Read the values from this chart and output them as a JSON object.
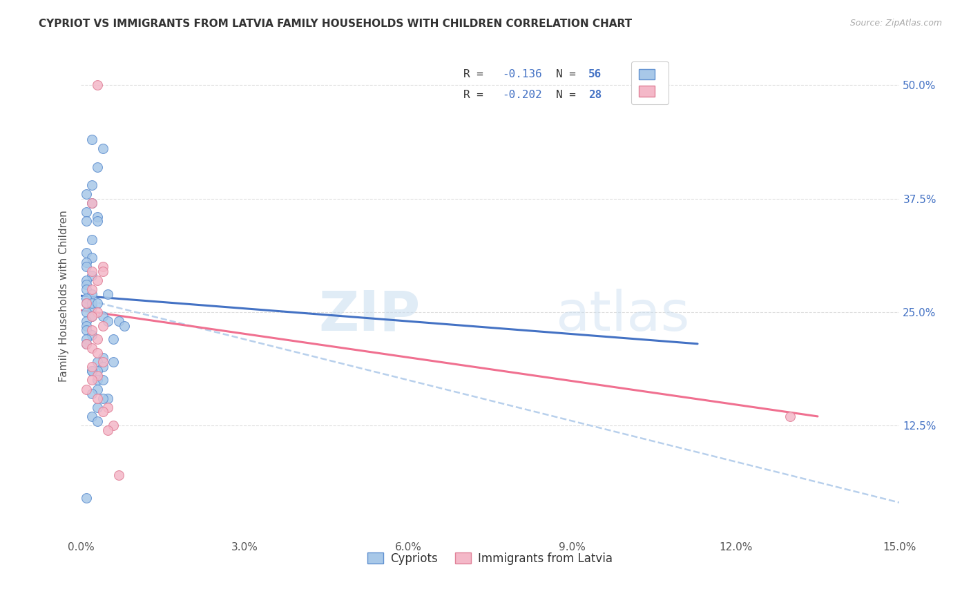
{
  "title": "CYPRIOT VS IMMIGRANTS FROM LATVIA FAMILY HOUSEHOLDS WITH CHILDREN CORRELATION CHART",
  "source": "Source: ZipAtlas.com",
  "ylabel": "Family Households with Children",
  "yticks": [
    0.125,
    0.25,
    0.375,
    0.5
  ],
  "ytick_labels": [
    "12.5%",
    "25.0%",
    "37.5%",
    "50.0%"
  ],
  "xticks": [
    0.0,
    0.03,
    0.06,
    0.09,
    0.12,
    0.15
  ],
  "xtick_labels": [
    "0.0%",
    "3.0%",
    "6.0%",
    "9.0%",
    "12.0%",
    "15.0%"
  ],
  "xlim": [
    0.0,
    0.15
  ],
  "ylim": [
    0.0,
    0.535
  ],
  "legend_r1": "R = ",
  "legend_v1": "-0.136",
  "legend_n1": "   N = ",
  "legend_nv1": "56",
  "legend_r2": "R = ",
  "legend_v2": "-0.202",
  "legend_n2": "   N = ",
  "legend_nv2": "28",
  "legend_label1": "Cypriots",
  "legend_label2": "Immigrants from Latvia",
  "color_blue_fill": "#a8c8e8",
  "color_blue_edge": "#6090d0",
  "color_pink_fill": "#f4b8c8",
  "color_pink_edge": "#e08098",
  "line_blue": "#4472c4",
  "line_pink": "#f07090",
  "line_dashed": "#b8d0ec",
  "text_blue": "#4472c4",
  "text_black": "#333333",
  "background": "#ffffff",
  "cypriot_x": [
    0.002,
    0.004,
    0.003,
    0.002,
    0.001,
    0.002,
    0.001,
    0.003,
    0.001,
    0.002,
    0.001,
    0.002,
    0.001,
    0.001,
    0.002,
    0.001,
    0.001,
    0.001,
    0.002,
    0.001,
    0.001,
    0.002,
    0.001,
    0.002,
    0.001,
    0.001,
    0.001,
    0.002,
    0.001,
    0.001,
    0.003,
    0.002,
    0.003,
    0.005,
    0.004,
    0.005,
    0.007,
    0.008,
    0.006,
    0.004,
    0.003,
    0.004,
    0.006,
    0.003,
    0.002,
    0.003,
    0.004,
    0.003,
    0.002,
    0.005,
    0.004,
    0.003,
    0.002,
    0.003,
    0.001,
    0.002
  ],
  "cypriot_y": [
    0.44,
    0.43,
    0.41,
    0.39,
    0.38,
    0.37,
    0.36,
    0.355,
    0.35,
    0.33,
    0.315,
    0.31,
    0.305,
    0.3,
    0.29,
    0.285,
    0.28,
    0.275,
    0.27,
    0.265,
    0.26,
    0.255,
    0.25,
    0.245,
    0.24,
    0.235,
    0.23,
    0.225,
    0.22,
    0.215,
    0.35,
    0.26,
    0.26,
    0.27,
    0.245,
    0.24,
    0.24,
    0.235,
    0.22,
    0.2,
    0.195,
    0.19,
    0.195,
    0.185,
    0.185,
    0.175,
    0.175,
    0.165,
    0.16,
    0.155,
    0.155,
    0.145,
    0.135,
    0.13,
    0.045,
    0.185
  ],
  "latvia_x": [
    0.003,
    0.002,
    0.002,
    0.004,
    0.004,
    0.003,
    0.002,
    0.001,
    0.003,
    0.002,
    0.004,
    0.002,
    0.003,
    0.001,
    0.002,
    0.003,
    0.002,
    0.004,
    0.003,
    0.002,
    0.001,
    0.003,
    0.005,
    0.004,
    0.006,
    0.005,
    0.13,
    0.007
  ],
  "latvia_y": [
    0.5,
    0.37,
    0.295,
    0.3,
    0.295,
    0.285,
    0.275,
    0.26,
    0.25,
    0.245,
    0.235,
    0.23,
    0.22,
    0.215,
    0.21,
    0.205,
    0.19,
    0.195,
    0.18,
    0.175,
    0.165,
    0.155,
    0.145,
    0.14,
    0.125,
    0.12,
    0.135,
    0.07
  ],
  "blue_trend_x": [
    0.0,
    0.113
  ],
  "blue_trend_y": [
    0.268,
    0.215
  ],
  "pink_trend_x": [
    0.0,
    0.135
  ],
  "pink_trend_y": [
    0.252,
    0.135
  ],
  "dashed_trend_x": [
    0.0,
    0.15
  ],
  "dashed_trend_y": [
    0.265,
    0.04
  ]
}
